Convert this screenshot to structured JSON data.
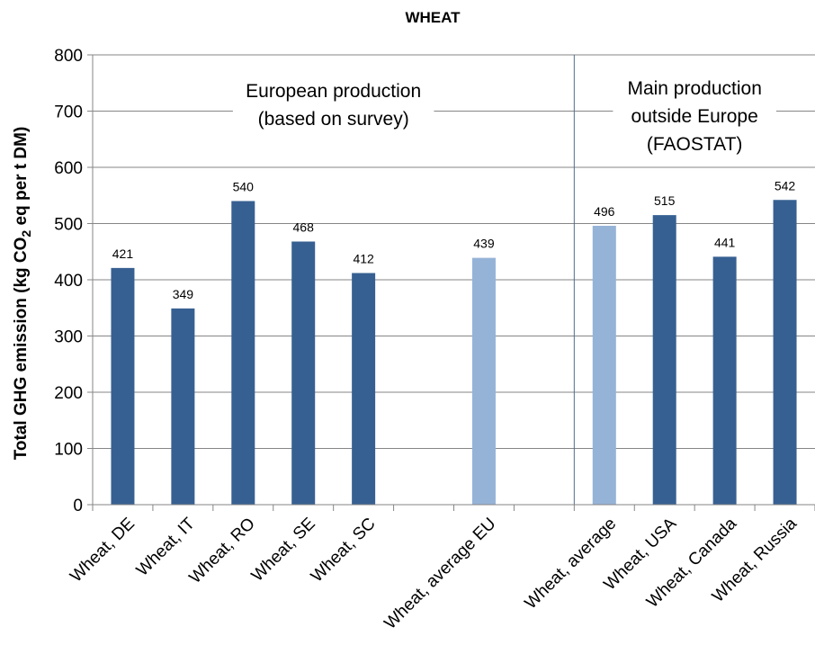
{
  "chart_data": {
    "type": "bar",
    "title": "WHEAT",
    "ylabel_parts": [
      "Total GHG emission (kg CO",
      "2",
      " eq per t DM)"
    ],
    "ylim": [
      0,
      800
    ],
    "yticks": [
      "0",
      "100",
      "200",
      "300",
      "400",
      "500",
      "600",
      "700",
      "800"
    ],
    "categories": [
      "Wheat, DE",
      "Wheat, IT",
      "Wheat, RO",
      "Wheat, SE",
      "Wheat, SC",
      "",
      "Wheat, average EU",
      "",
      "Wheat, average",
      "Wheat, USA",
      "Wheat, Canada",
      "Wheat, Russia"
    ],
    "values": [
      421,
      349,
      540,
      468,
      412,
      null,
      439,
      null,
      496,
      515,
      441,
      542
    ],
    "data_labels": [
      "421",
      "349",
      "540",
      "468",
      "412",
      "",
      "439",
      "",
      "496",
      "515",
      "441",
      "542"
    ],
    "bar_kinds": [
      "country",
      "country",
      "country",
      "country",
      "country",
      "none",
      "average",
      "none",
      "average",
      "country",
      "country",
      "country"
    ],
    "colors": {
      "country": "#376092",
      "average": "#95b3d7",
      "axis": "#868686",
      "grid": "#868686"
    },
    "grid": true,
    "annotations": [
      {
        "lines": [
          "European production",
          "(based on survey)"
        ]
      },
      {
        "lines": [
          "Main production",
          "outside Europe",
          "(FAOSTAT)"
        ]
      }
    ]
  }
}
